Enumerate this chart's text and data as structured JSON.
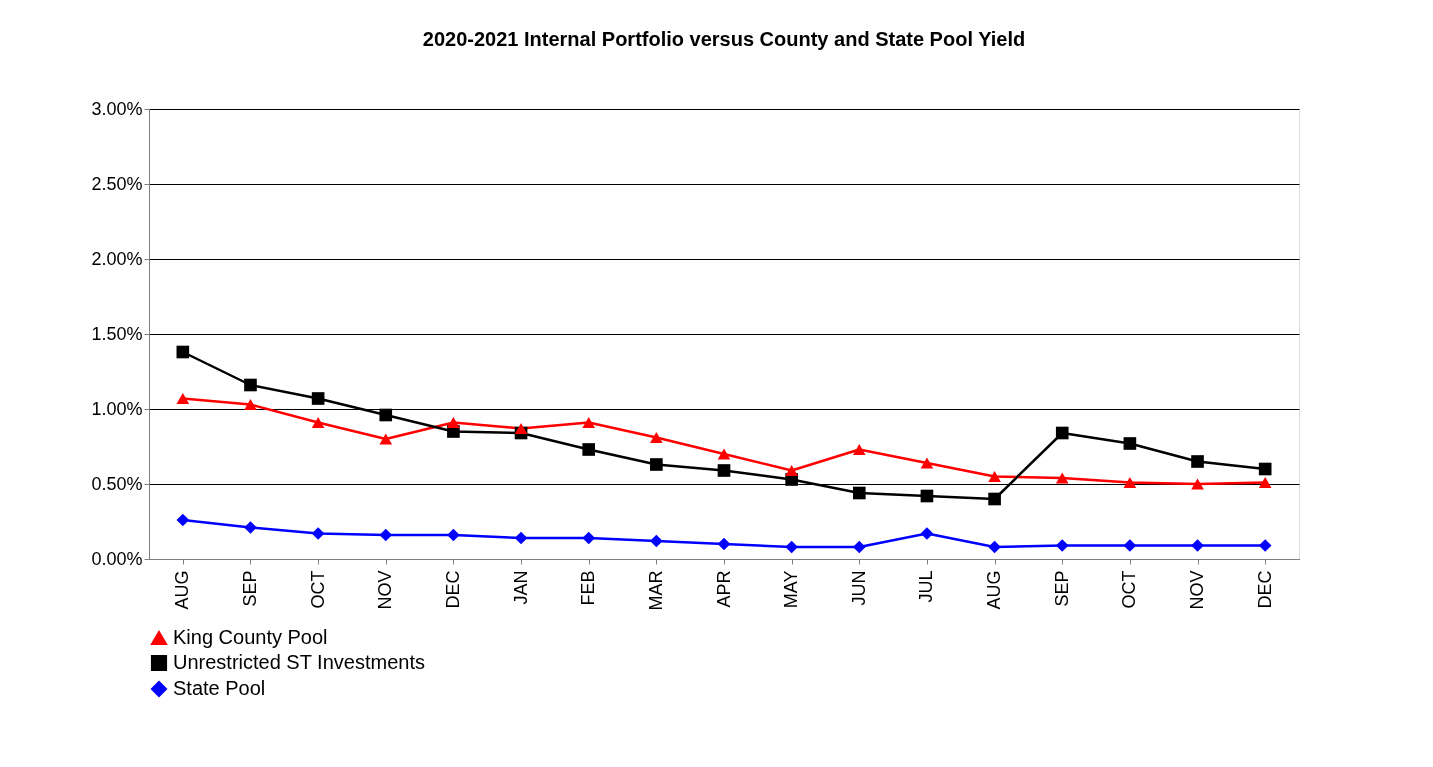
{
  "chart_data": {
    "type": "line",
    "title": "2020-2021 Internal Portfolio versus County and State Pool Yield",
    "categories": [
      "AUG",
      "SEP",
      "OCT",
      "NOV",
      "DEC",
      "JAN",
      "FEB",
      "MAR",
      "APR",
      "MAY",
      "JUN",
      "JUL",
      "AUG",
      "SEP",
      "OCT",
      "NOV",
      "DEC"
    ],
    "series": [
      {
        "name": "King County Pool",
        "color": "#ff0000",
        "marker": "triangle",
        "values": [
          1.07,
          1.03,
          0.91,
          0.8,
          0.91,
          0.87,
          0.91,
          0.81,
          0.7,
          0.59,
          0.73,
          0.64,
          0.55,
          0.54,
          0.51,
          0.5,
          0.51
        ]
      },
      {
        "name": "Unrestricted ST Investments",
        "color": "#000000",
        "marker": "square",
        "values": [
          1.38,
          1.16,
          1.07,
          0.96,
          0.85,
          0.84,
          0.73,
          0.63,
          0.59,
          0.53,
          0.44,
          0.42,
          0.4,
          0.84,
          0.77,
          0.65,
          0.6
        ]
      },
      {
        "name": "State Pool",
        "color": "#0000ff",
        "marker": "diamond",
        "values": [
          0.26,
          0.21,
          0.17,
          0.16,
          0.16,
          0.14,
          0.14,
          0.12,
          0.1,
          0.08,
          0.08,
          0.17,
          0.08,
          0.09,
          0.09,
          0.09,
          0.09
        ]
      }
    ],
    "ylim": [
      0,
      3
    ],
    "yticks": [
      {
        "value": 0,
        "label": "0.00%"
      },
      {
        "value": 0.5,
        "label": "0.50%"
      },
      {
        "value": 1,
        "label": "1.00%"
      },
      {
        "value": 1.5,
        "label": "1.50%"
      },
      {
        "value": 2,
        "label": "2.00%"
      },
      {
        "value": 2.5,
        "label": "2.50%"
      },
      {
        "value": 3,
        "label": "3.00%"
      }
    ],
    "grid": "y",
    "legend": "bottom",
    "line_style": "solid"
  }
}
